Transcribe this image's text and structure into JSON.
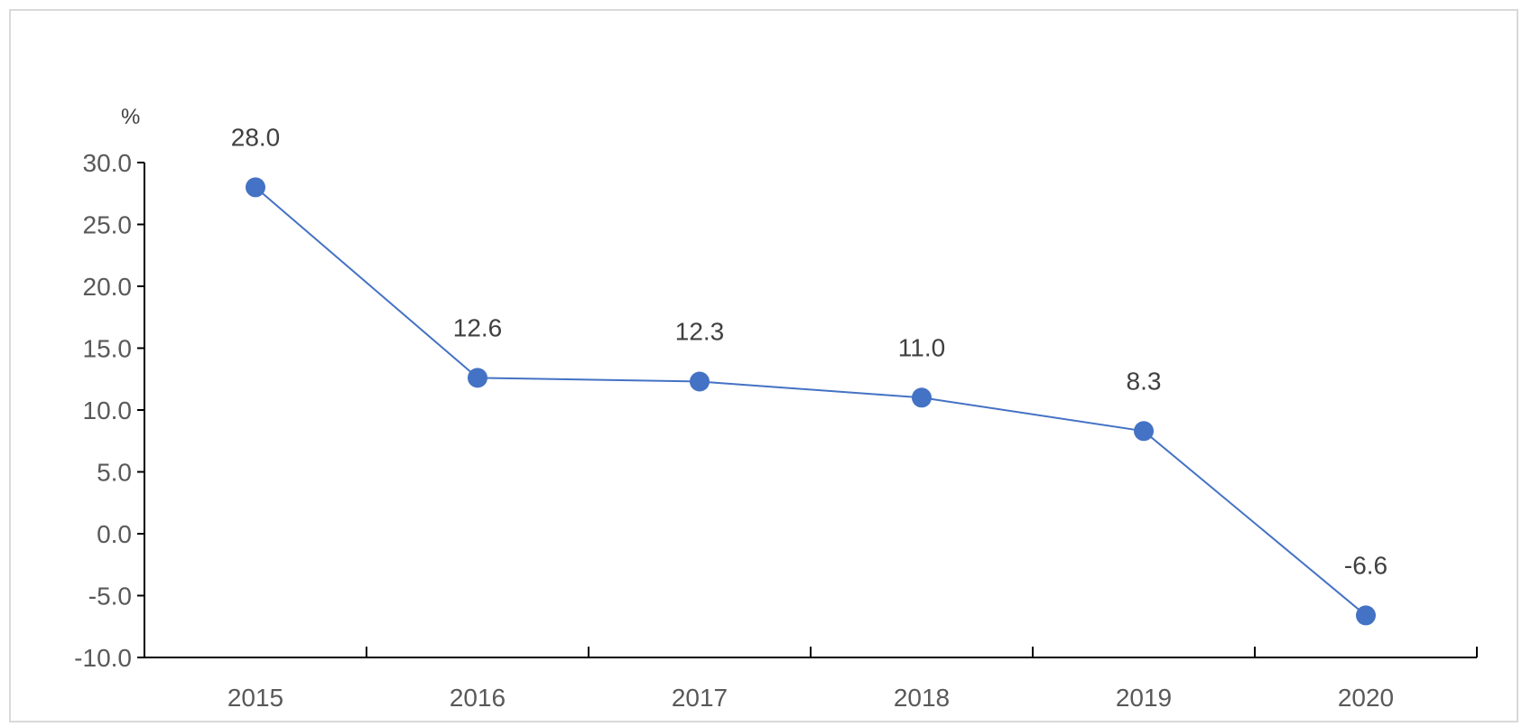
{
  "chart_data": {
    "type": "line",
    "title": "",
    "xlabel": "",
    "ylabel": "%",
    "categories": [
      "2015",
      "2016",
      "2017",
      "2018",
      "2019",
      "2020"
    ],
    "series": [
      {
        "values": [
          28.0,
          12.6,
          12.3,
          11.0,
          8.3,
          -6.6
        ],
        "data_labels": [
          "28.0",
          "12.6",
          "12.3",
          "11.0",
          "8.3",
          "-6.6"
        ],
        "color": "#4472c4"
      }
    ],
    "ylim": [
      -10,
      30
    ],
    "yticks": [
      30,
      25,
      20,
      15,
      10,
      5,
      0,
      -5,
      -10
    ],
    "ytick_labels": [
      "30.0",
      "25.0",
      "20.0",
      "15.0",
      "10.0",
      "5.0",
      "0.0",
      "-5.0",
      "-10.0"
    ],
    "grid": false,
    "legend": "none"
  }
}
